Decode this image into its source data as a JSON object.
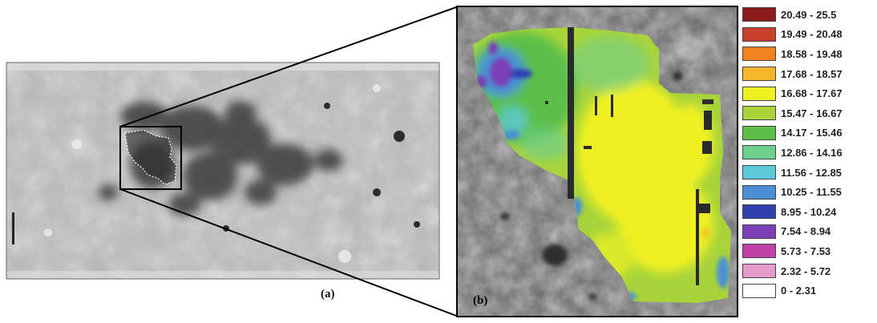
{
  "panels": {
    "left_label": "(a)",
    "right_label": "(b)"
  },
  "legend": {
    "items": [
      {
        "range": "20.49 - 25.5",
        "color": "#8b1a1a"
      },
      {
        "range": "19.49 - 20.48",
        "color": "#c8402a"
      },
      {
        "range": "18.58 - 19.48",
        "color": "#f2811f"
      },
      {
        "range": "17.68 - 18.57",
        "color": "#f6b52a"
      },
      {
        "range": "16.68 - 17.67",
        "color": "#eff022"
      },
      {
        "range": "15.47 - 16.67",
        "color": "#a8d43a"
      },
      {
        "range": "14.17 - 15.46",
        "color": "#5cbf48"
      },
      {
        "range": "12.86 - 14.16",
        "color": "#6fcf8c"
      },
      {
        "range": "11.56 - 12.85",
        "color": "#5cc9d8"
      },
      {
        "range": "10.25 - 11.55",
        "color": "#4a8fd6"
      },
      {
        "range": "8.95 - 10.24",
        "color": "#2f3fb0"
      },
      {
        "range": "7.54 - 8.94",
        "color": "#7b3fb6"
      },
      {
        "range": "5.73 - 7.53",
        "color": "#c040a8"
      },
      {
        "range": "2.32 - 5.72",
        "color": "#e39ccb"
      },
      {
        "range": "0 - 2.31",
        "color": "#ffffff"
      }
    ]
  }
}
